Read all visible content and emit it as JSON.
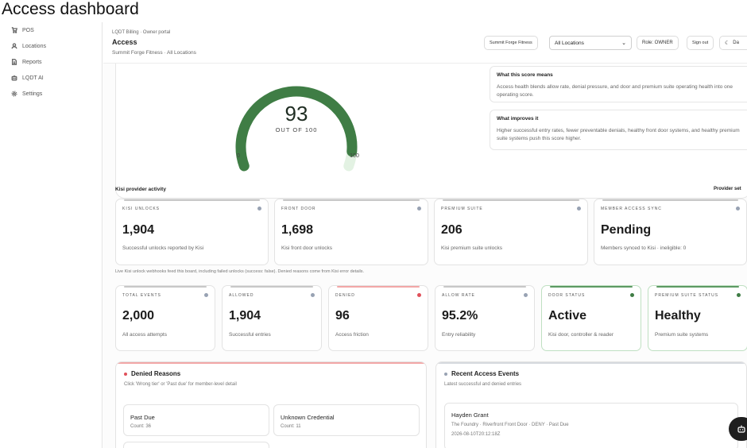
{
  "page": {
    "title": "Access dashboard"
  },
  "sidebar": {
    "items": [
      {
        "label": "POS",
        "icon": "cart-icon"
      },
      {
        "label": "Locations",
        "icon": "people-icon"
      },
      {
        "label": "Reports",
        "icon": "document-icon"
      },
      {
        "label": "LQDT AI",
        "icon": "robot-icon"
      },
      {
        "label": "Settings",
        "icon": "gear-icon"
      }
    ]
  },
  "header": {
    "breadcrumb": "LQDT Billing · Owner portal",
    "title": "Access",
    "subtitle": "Summit Forge Fitness · All Locations",
    "org_button": "Summit Forge Fitness",
    "location_select": "All Locations",
    "role": "Role: OWNER",
    "signout": "Sign out",
    "extra_button": "Da"
  },
  "score": {
    "value": "93",
    "out_of": "OUT OF 100",
    "min": "0",
    "max": "100",
    "fraction": 0.93,
    "color": "#3f7d45",
    "what_title": "What this score means",
    "what_text": "Access health blends allow rate, denial pressure, and door and premium suite operating health into one operating score.",
    "improves_title": "What improves it",
    "improves_text": "Higher successful entry rates, fewer preventable denials, healthy front door systems, and healthy premium suite systems push this score higher."
  },
  "kisi": {
    "section_title": "Kisi provider activity",
    "provider_link": "Provider set",
    "cards": [
      {
        "label": "Kisi unlocks",
        "value": "1,904",
        "sub": "Successful unlocks reported by Kisi"
      },
      {
        "label": "Front door",
        "value": "1,698",
        "sub": "Kisi front door unlocks"
      },
      {
        "label": "Premium suite",
        "value": "206",
        "sub": "Kisi premium suite unlocks"
      },
      {
        "label": "Member access sync",
        "value": "Pending",
        "sub": "Members synced to Kisi · ineligible: 0"
      }
    ],
    "note": "Live Kisi unlock webhooks feed this board, including failed unlocks (success: false). Denied reasons come from Kisi error details."
  },
  "stats": [
    {
      "label": "Total events",
      "value": "2,000",
      "sub": "All access attempts",
      "accent": "#c7c7c7",
      "dot": "#98a2b3"
    },
    {
      "label": "Allowed",
      "value": "1,904",
      "sub": "Successful entries",
      "accent": "#c7c7c7",
      "dot": "#98a2b3"
    },
    {
      "label": "Denied",
      "value": "96",
      "sub": "Access friction",
      "accent": "#f2a7a7",
      "dot": "#e0505a"
    },
    {
      "label": "Allow rate",
      "value": "95.2%",
      "sub": "Entry reliability",
      "accent": "#c7c7c7",
      "dot": "#98a2b3"
    },
    {
      "label": "Door status",
      "value": "Active",
      "sub": "Kisi door, controller & reader",
      "accent": "#5c9a63",
      "dot": "#3f7d45"
    },
    {
      "label": "Premium suite status",
      "value": "Healthy",
      "sub": "Premium suite systems",
      "accent": "#5c9a63",
      "dot": "#3f7d45"
    }
  ],
  "denied": {
    "title": "Denied Reasons",
    "subtitle": "Click 'Wrong tier' or 'Past due' for member-level detail",
    "items": [
      {
        "name": "Past Due",
        "count": "Count: 36"
      },
      {
        "name": "Unknown Credential",
        "count": "Count: 11"
      }
    ]
  },
  "recent": {
    "title": "Recent Access Events",
    "subtitle": "Latest successful and denied entries",
    "events": [
      {
        "name": "Hayden Grant",
        "detail": "The Foundry · Riverfront Front Door · DENY · Past Due",
        "time": "2026-08-10T20:12:18Z"
      }
    ]
  }
}
